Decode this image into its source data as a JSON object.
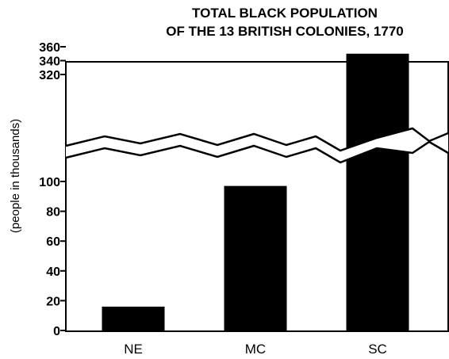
{
  "chart_data": {
    "type": "bar",
    "title_lines": [
      "TOTAL BLACK POPULATION",
      "OF THE 13 BRITISH COLONIES, 1770"
    ],
    "ylabel": "(people in thousands)",
    "categories": [
      "NE",
      "MC",
      "SC"
    ],
    "values": [
      16,
      97,
      350
    ],
    "axis_break": {
      "lower_range": [
        0,
        110
      ],
      "upper_range": [
        300,
        360
      ]
    },
    "y_ticks_lower": [
      0,
      20,
      40,
      60,
      80,
      100
    ],
    "y_ticks_upper": [
      320,
      340,
      360
    ],
    "bar_color": "#000000",
    "grid": false,
    "legend": "none"
  }
}
